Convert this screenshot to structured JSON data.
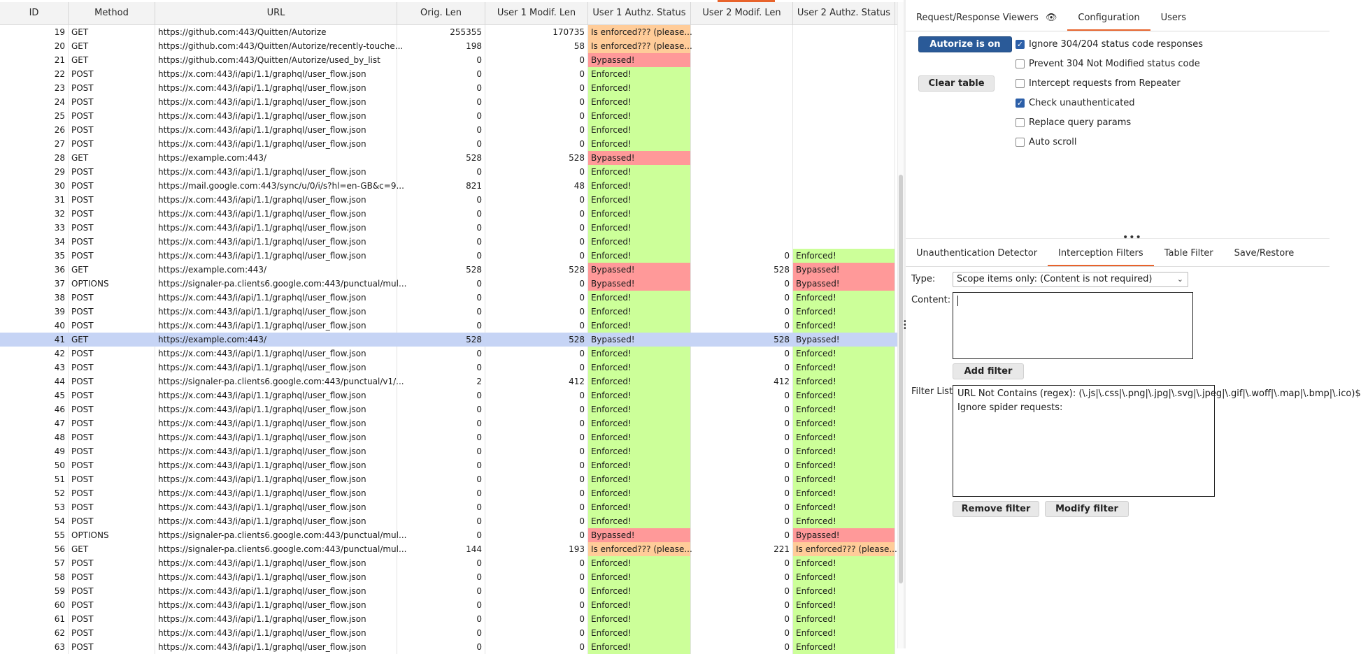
{
  "table": {
    "columns": [
      "ID",
      "Method",
      "URL",
      "Orig. Len",
      "User 1 Modif. Len",
      "User 1 Authz. Status",
      "User 2 Modif. Len",
      "User 2 Authz. Status"
    ],
    "rows": [
      {
        "id": "19",
        "method": "GET",
        "url": "https://github.com:443/Quitten/Autorize",
        "orig": "255355",
        "u1len": "170735",
        "u1status": "Is enforced??? (please...",
        "u2len": "",
        "u2status": ""
      },
      {
        "id": "20",
        "method": "GET",
        "url": "https://github.com:443/Quitten/Autorize/recently-touche...",
        "orig": "198",
        "u1len": "58",
        "u1status": "Is enforced??? (please...",
        "u2len": "",
        "u2status": ""
      },
      {
        "id": "21",
        "method": "GET",
        "url": "https://github.com:443/Quitten/Autorize/used_by_list",
        "orig": "0",
        "u1len": "0",
        "u1status": "Bypassed!",
        "u2len": "",
        "u2status": ""
      },
      {
        "id": "22",
        "method": "POST",
        "url": "https://x.com:443/i/api/1.1/graphql/user_flow.json",
        "orig": "0",
        "u1len": "0",
        "u1status": "Enforced!",
        "u2len": "",
        "u2status": ""
      },
      {
        "id": "23",
        "method": "POST",
        "url": "https://x.com:443/i/api/1.1/graphql/user_flow.json",
        "orig": "0",
        "u1len": "0",
        "u1status": "Enforced!",
        "u2len": "",
        "u2status": ""
      },
      {
        "id": "24",
        "method": "POST",
        "url": "https://x.com:443/i/api/1.1/graphql/user_flow.json",
        "orig": "0",
        "u1len": "0",
        "u1status": "Enforced!",
        "u2len": "",
        "u2status": ""
      },
      {
        "id": "25",
        "method": "POST",
        "url": "https://x.com:443/i/api/1.1/graphql/user_flow.json",
        "orig": "0",
        "u1len": "0",
        "u1status": "Enforced!",
        "u2len": "",
        "u2status": ""
      },
      {
        "id": "26",
        "method": "POST",
        "url": "https://x.com:443/i/api/1.1/graphql/user_flow.json",
        "orig": "0",
        "u1len": "0",
        "u1status": "Enforced!",
        "u2len": "",
        "u2status": ""
      },
      {
        "id": "27",
        "method": "POST",
        "url": "https://x.com:443/i/api/1.1/graphql/user_flow.json",
        "orig": "0",
        "u1len": "0",
        "u1status": "Enforced!",
        "u2len": "",
        "u2status": ""
      },
      {
        "id": "28",
        "method": "GET",
        "url": "https://example.com:443/",
        "orig": "528",
        "u1len": "528",
        "u1status": "Bypassed!",
        "u2len": "",
        "u2status": ""
      },
      {
        "id": "29",
        "method": "POST",
        "url": "https://x.com:443/i/api/1.1/graphql/user_flow.json",
        "orig": "0",
        "u1len": "0",
        "u1status": "Enforced!",
        "u2len": "",
        "u2status": ""
      },
      {
        "id": "30",
        "method": "POST",
        "url": "https://mail.google.com:443/sync/u/0/i/s?hl=en-GB&c=9...",
        "orig": "821",
        "u1len": "48",
        "u1status": "Enforced!",
        "u2len": "",
        "u2status": ""
      },
      {
        "id": "31",
        "method": "POST",
        "url": "https://x.com:443/i/api/1.1/graphql/user_flow.json",
        "orig": "0",
        "u1len": "0",
        "u1status": "Enforced!",
        "u2len": "",
        "u2status": ""
      },
      {
        "id": "32",
        "method": "POST",
        "url": "https://x.com:443/i/api/1.1/graphql/user_flow.json",
        "orig": "0",
        "u1len": "0",
        "u1status": "Enforced!",
        "u2len": "",
        "u2status": ""
      },
      {
        "id": "33",
        "method": "POST",
        "url": "https://x.com:443/i/api/1.1/graphql/user_flow.json",
        "orig": "0",
        "u1len": "0",
        "u1status": "Enforced!",
        "u2len": "",
        "u2status": ""
      },
      {
        "id": "34",
        "method": "POST",
        "url": "https://x.com:443/i/api/1.1/graphql/user_flow.json",
        "orig": "0",
        "u1len": "0",
        "u1status": "Enforced!",
        "u2len": "",
        "u2status": ""
      },
      {
        "id": "35",
        "method": "POST",
        "url": "https://x.com:443/i/api/1.1/graphql/user_flow.json",
        "orig": "0",
        "u1len": "0",
        "u1status": "Enforced!",
        "u2len": "0",
        "u2status": "Enforced!"
      },
      {
        "id": "36",
        "method": "GET",
        "url": "https://example.com:443/",
        "orig": "528",
        "u1len": "528",
        "u1status": "Bypassed!",
        "u2len": "528",
        "u2status": "Bypassed!"
      },
      {
        "id": "37",
        "method": "OPTIONS",
        "url": "https://signaler-pa.clients6.google.com:443/punctual/mul...",
        "orig": "0",
        "u1len": "0",
        "u1status": "Bypassed!",
        "u2len": "0",
        "u2status": "Bypassed!"
      },
      {
        "id": "38",
        "method": "POST",
        "url": "https://x.com:443/i/api/1.1/graphql/user_flow.json",
        "orig": "0",
        "u1len": "0",
        "u1status": "Enforced!",
        "u2len": "0",
        "u2status": "Enforced!"
      },
      {
        "id": "39",
        "method": "POST",
        "url": "https://x.com:443/i/api/1.1/graphql/user_flow.json",
        "orig": "0",
        "u1len": "0",
        "u1status": "Enforced!",
        "u2len": "0",
        "u2status": "Enforced!"
      },
      {
        "id": "40",
        "method": "POST",
        "url": "https://x.com:443/i/api/1.1/graphql/user_flow.json",
        "orig": "0",
        "u1len": "0",
        "u1status": "Enforced!",
        "u2len": "0",
        "u2status": "Enforced!"
      },
      {
        "id": "41",
        "method": "GET",
        "url": "https://example.com:443/",
        "orig": "528",
        "u1len": "528",
        "u1status": "Bypassed!",
        "u2len": "528",
        "u2status": "Bypassed!",
        "selected": true
      },
      {
        "id": "42",
        "method": "POST",
        "url": "https://x.com:443/i/api/1.1/graphql/user_flow.json",
        "orig": "0",
        "u1len": "0",
        "u1status": "Enforced!",
        "u2len": "0",
        "u2status": "Enforced!"
      },
      {
        "id": "43",
        "method": "POST",
        "url": "https://x.com:443/i/api/1.1/graphql/user_flow.json",
        "orig": "0",
        "u1len": "0",
        "u1status": "Enforced!",
        "u2len": "0",
        "u2status": "Enforced!"
      },
      {
        "id": "44",
        "method": "POST",
        "url": "https://signaler-pa.clients6.google.com:443/punctual/v1/...",
        "orig": "2",
        "u1len": "412",
        "u1status": "Enforced!",
        "u2len": "412",
        "u2status": "Enforced!"
      },
      {
        "id": "45",
        "method": "POST",
        "url": "https://x.com:443/i/api/1.1/graphql/user_flow.json",
        "orig": "0",
        "u1len": "0",
        "u1status": "Enforced!",
        "u2len": "0",
        "u2status": "Enforced!"
      },
      {
        "id": "46",
        "method": "POST",
        "url": "https://x.com:443/i/api/1.1/graphql/user_flow.json",
        "orig": "0",
        "u1len": "0",
        "u1status": "Enforced!",
        "u2len": "0",
        "u2status": "Enforced!"
      },
      {
        "id": "47",
        "method": "POST",
        "url": "https://x.com:443/i/api/1.1/graphql/user_flow.json",
        "orig": "0",
        "u1len": "0",
        "u1status": "Enforced!",
        "u2len": "0",
        "u2status": "Enforced!"
      },
      {
        "id": "48",
        "method": "POST",
        "url": "https://x.com:443/i/api/1.1/graphql/user_flow.json",
        "orig": "0",
        "u1len": "0",
        "u1status": "Enforced!",
        "u2len": "0",
        "u2status": "Enforced!"
      },
      {
        "id": "49",
        "method": "POST",
        "url": "https://x.com:443/i/api/1.1/graphql/user_flow.json",
        "orig": "0",
        "u1len": "0",
        "u1status": "Enforced!",
        "u2len": "0",
        "u2status": "Enforced!"
      },
      {
        "id": "50",
        "method": "POST",
        "url": "https://x.com:443/i/api/1.1/graphql/user_flow.json",
        "orig": "0",
        "u1len": "0",
        "u1status": "Enforced!",
        "u2len": "0",
        "u2status": "Enforced!"
      },
      {
        "id": "51",
        "method": "POST",
        "url": "https://x.com:443/i/api/1.1/graphql/user_flow.json",
        "orig": "0",
        "u1len": "0",
        "u1status": "Enforced!",
        "u2len": "0",
        "u2status": "Enforced!"
      },
      {
        "id": "52",
        "method": "POST",
        "url": "https://x.com:443/i/api/1.1/graphql/user_flow.json",
        "orig": "0",
        "u1len": "0",
        "u1status": "Enforced!",
        "u2len": "0",
        "u2status": "Enforced!"
      },
      {
        "id": "53",
        "method": "POST",
        "url": "https://x.com:443/i/api/1.1/graphql/user_flow.json",
        "orig": "0",
        "u1len": "0",
        "u1status": "Enforced!",
        "u2len": "0",
        "u2status": "Enforced!"
      },
      {
        "id": "54",
        "method": "POST",
        "url": "https://x.com:443/i/api/1.1/graphql/user_flow.json",
        "orig": "0",
        "u1len": "0",
        "u1status": "Enforced!",
        "u2len": "0",
        "u2status": "Enforced!"
      },
      {
        "id": "55",
        "method": "OPTIONS",
        "url": "https://signaler-pa.clients6.google.com:443/punctual/mul...",
        "orig": "0",
        "u1len": "0",
        "u1status": "Bypassed!",
        "u2len": "0",
        "u2status": "Bypassed!"
      },
      {
        "id": "56",
        "method": "GET",
        "url": "https://signaler-pa.clients6.google.com:443/punctual/mul...",
        "orig": "144",
        "u1len": "193",
        "u1status": "Is enforced??? (please...",
        "u2len": "221",
        "u2status": "Is enforced??? (please..."
      },
      {
        "id": "57",
        "method": "POST",
        "url": "https://x.com:443/i/api/1.1/graphql/user_flow.json",
        "orig": "0",
        "u1len": "0",
        "u1status": "Enforced!",
        "u2len": "0",
        "u2status": "Enforced!"
      },
      {
        "id": "58",
        "method": "POST",
        "url": "https://x.com:443/i/api/1.1/graphql/user_flow.json",
        "orig": "0",
        "u1len": "0",
        "u1status": "Enforced!",
        "u2len": "0",
        "u2status": "Enforced!"
      },
      {
        "id": "59",
        "method": "POST",
        "url": "https://x.com:443/i/api/1.1/graphql/user_flow.json",
        "orig": "0",
        "u1len": "0",
        "u1status": "Enforced!",
        "u2len": "0",
        "u2status": "Enforced!"
      },
      {
        "id": "60",
        "method": "POST",
        "url": "https://x.com:443/i/api/1.1/graphql/user_flow.json",
        "orig": "0",
        "u1len": "0",
        "u1status": "Enforced!",
        "u2len": "0",
        "u2status": "Enforced!"
      },
      {
        "id": "61",
        "method": "POST",
        "url": "https://x.com:443/i/api/1.1/graphql/user_flow.json",
        "orig": "0",
        "u1len": "0",
        "u1status": "Enforced!",
        "u2len": "0",
        "u2status": "Enforced!"
      },
      {
        "id": "62",
        "method": "POST",
        "url": "https://x.com:443/i/api/1.1/graphql/user_flow.json",
        "orig": "0",
        "u1len": "0",
        "u1status": "Enforced!",
        "u2len": "0",
        "u2status": "Enforced!"
      },
      {
        "id": "63",
        "method": "POST",
        "url": "https://x.com:443/i/api/1.1/graphql/user_flow.json",
        "orig": "0",
        "u1len": "0",
        "u1status": "Enforced!",
        "u2len": "0",
        "u2status": "Enforced!"
      }
    ]
  },
  "status_colors": {
    "enforced": "#ccff99",
    "bypassed": "#ff9999",
    "is_enforced": "#ffcc99",
    "selected_row": "#c6d4f5"
  },
  "accent_color": "#e8632b",
  "right_panel": {
    "top_tabs": [
      {
        "label": "Request/Response Viewers",
        "icon": "eye-icon"
      },
      {
        "label": "Configuration",
        "active": true
      },
      {
        "label": "Users"
      }
    ],
    "config": {
      "autorize_button": "Autorize is on",
      "clear_button": "Clear table",
      "options": [
        {
          "label": "Ignore 304/204 status code responses",
          "checked": true
        },
        {
          "label": "Prevent 304 Not Modified status code",
          "checked": false
        },
        {
          "label": "Intercept requests from Repeater",
          "checked": false
        },
        {
          "label": "Check unauthenticated",
          "checked": true
        },
        {
          "label": "Replace query params",
          "checked": false
        },
        {
          "label": "Auto scroll",
          "checked": false
        }
      ]
    },
    "bottom_tabs": [
      {
        "label": "Unauthentication Detector"
      },
      {
        "label": "Interception Filters",
        "active": true
      },
      {
        "label": "Table Filter"
      },
      {
        "label": "Save/Restore"
      }
    ],
    "filters": {
      "type_label": "Type:",
      "type_value": "Scope items only: (Content is not required)",
      "content_label": "Content:",
      "content_value": "",
      "add_button": "Add filter",
      "list_label": "Filter List:",
      "list_items": [
        "URL Not Contains (regex): (\\.js|\\.css|\\.png|\\.jpg|\\.svg|\\.jpeg|\\.gif|\\.woff|\\.map|\\.bmp|\\.ico)$",
        "Ignore spider requests:"
      ],
      "remove_button": "Remove filter",
      "modify_button": "Modify filter"
    }
  }
}
